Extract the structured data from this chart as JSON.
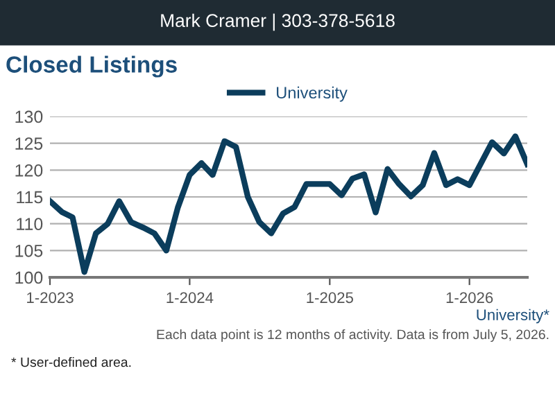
{
  "chart_data": {
    "type": "line",
    "title": "Closed Listings",
    "subtitle": "Each data point is 12 months of activity. Data is from July 5, 2026.",
    "annotations": [
      "Mark Cramer | 303-378-5618",
      "University*",
      "* User-defined area."
    ],
    "x": [
      "2023-01",
      "2023-02",
      "2023-03",
      "2023-04",
      "2023-05",
      "2023-06",
      "2023-07",
      "2023-08",
      "2023-09",
      "2023-10",
      "2023-11",
      "2023-12",
      "2024-01",
      "2024-02",
      "2024-03",
      "2024-04",
      "2024-05",
      "2024-06",
      "2024-07",
      "2024-08",
      "2024-09",
      "2024-10",
      "2024-11",
      "2024-12",
      "2025-01",
      "2025-02",
      "2025-03",
      "2025-04",
      "2025-05",
      "2025-06",
      "2025-07",
      "2025-08",
      "2025-09",
      "2025-10",
      "2025-11",
      "2025-12",
      "2026-01",
      "2026-02",
      "2026-03",
      "2026-04",
      "2026-05",
      "2026-06"
    ],
    "series": [
      {
        "name": "University",
        "color": "#0b3d5c",
        "values": [
          114.2,
          112.2,
          111.2,
          101,
          108.2,
          110,
          114.2,
          110.3,
          109.3,
          108.2,
          105,
          113,
          119.1,
          121.3,
          119.1,
          125.4,
          124.3,
          115,
          110.3,
          108.2,
          111.9,
          113.1,
          117.4,
          117.4,
          117.4,
          115.3,
          118.4,
          119.2,
          112.1,
          120.2,
          117.4,
          115.1,
          117.2,
          123.2,
          117.2,
          118.3,
          117.2,
          121.4,
          125.2,
          123.1,
          126.3,
          121.1
        ]
      }
    ],
    "xlim": [
      "2023-01",
      "2026-06"
    ],
    "xticks": [
      {
        "value": "2023-01",
        "label": "1-2023"
      },
      {
        "value": "2024-01",
        "label": "1-2024"
      },
      {
        "value": "2025-01",
        "label": "1-2025"
      },
      {
        "value": "2026-01",
        "label": "1-2026"
      }
    ],
    "ylim": [
      100,
      130
    ],
    "yticks": [
      100,
      105,
      110,
      115,
      120,
      125,
      130
    ],
    "grid": "y",
    "legend": "top",
    "marker": "none",
    "line_style": "solid"
  }
}
